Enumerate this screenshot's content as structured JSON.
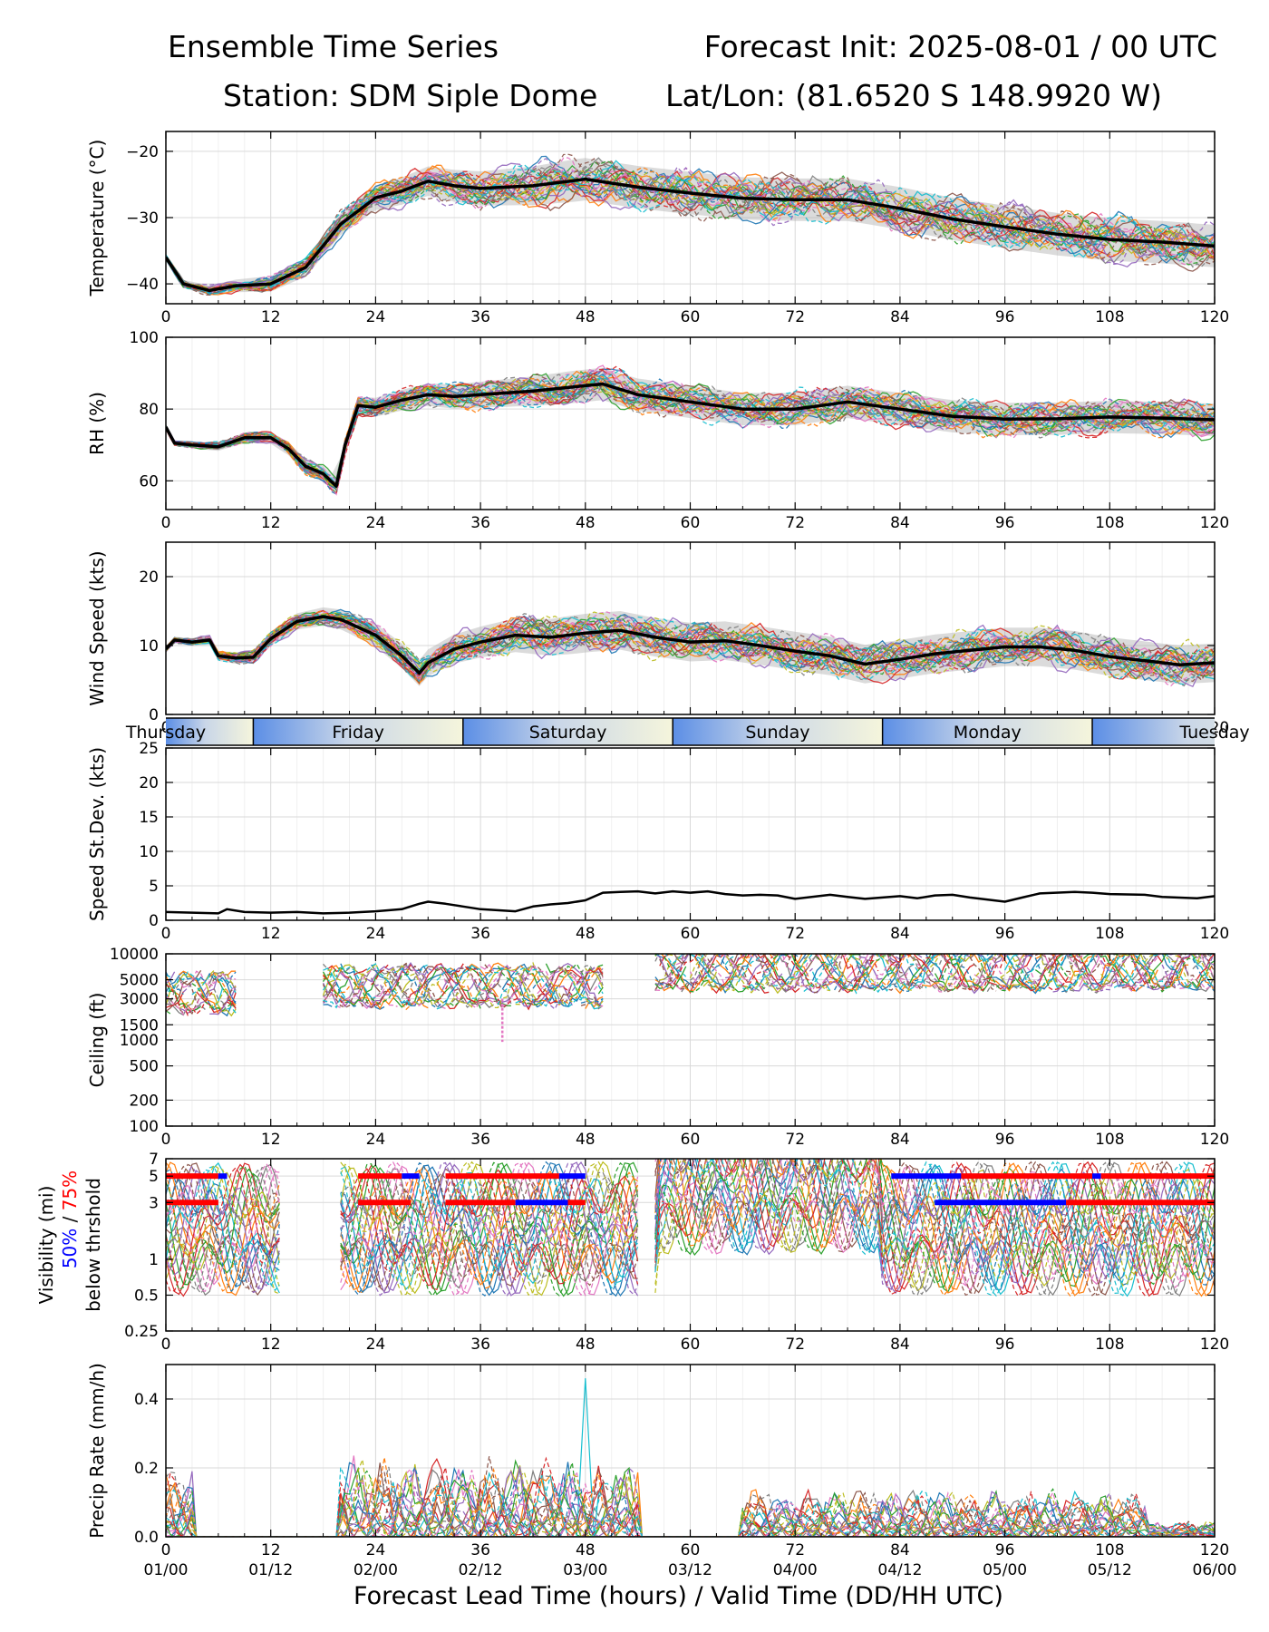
{
  "header": {
    "title_left": "Ensemble Time Series",
    "title_right": "Forecast Init: 2025-08-01 / 00 UTC",
    "station": "Station: SDM  Siple Dome",
    "latlon": "Lat/Lon: (81.6520 S 148.9920 W)"
  },
  "x_axis": {
    "label": "Forecast Lead Time (hours) / Valid Time (DD/HH UTC)",
    "ticks": [
      0,
      12,
      24,
      36,
      48,
      60,
      72,
      84,
      96,
      108,
      120
    ],
    "valid_labels": [
      "01/00",
      "01/12",
      "02/00",
      "02/12",
      "03/00",
      "03/12",
      "04/00",
      "04/12",
      "05/00",
      "05/12",
      "06/00"
    ]
  },
  "day_bar": {
    "days": [
      {
        "label": "Thursday",
        "start": 0,
        "end": 10
      },
      {
        "label": "Friday",
        "start": 10,
        "end": 34
      },
      {
        "label": "Saturday",
        "start": 34,
        "end": 58
      },
      {
        "label": "Sunday",
        "start": 58,
        "end": 82
      },
      {
        "label": "Monday",
        "start": 82,
        "end": 106
      },
      {
        "label": "Tuesday",
        "start": 106,
        "end": 130
      }
    ]
  },
  "ensemble_colors": [
    "#1f77b4",
    "#ff7f0e",
    "#2ca02c",
    "#d62728",
    "#9467bd",
    "#8c564b",
    "#e377c2",
    "#7f7f7f",
    "#bcbd22",
    "#17becf"
  ],
  "chart_data": [
    {
      "id": "temperature",
      "type": "line",
      "ylabel": "Temperature (°C)",
      "ylim": [
        -43,
        -17
      ],
      "yticks": [
        -40,
        -30,
        -20
      ],
      "yscale": "linear",
      "grid": true,
      "mean": {
        "x": [
          0,
          2,
          5,
          8,
          12,
          16,
          20,
          24,
          27,
          30,
          33,
          36,
          42,
          48,
          54,
          60,
          66,
          72,
          78,
          84,
          90,
          96,
          102,
          108,
          114,
          120
        ],
        "y": [
          -36,
          -40,
          -41,
          -40.3,
          -40,
          -37.5,
          -31,
          -27,
          -26,
          -24.5,
          -25.2,
          -25.6,
          -25.2,
          -24.2,
          -25.4,
          -26.3,
          -27.1,
          -27.3,
          -27.3,
          -28.6,
          -30.2,
          -31.4,
          -32.5,
          -33.3,
          -33.7,
          -34.3
        ]
      },
      "spread": 3.2
    },
    {
      "id": "rh",
      "type": "line",
      "ylabel": "RH (%)",
      "ylim": [
        52,
        100
      ],
      "yticks": [
        60,
        80,
        100
      ],
      "yscale": "linear",
      "grid": true,
      "mean": {
        "x": [
          0,
          1,
          3,
          6,
          9,
          12,
          14,
          16,
          18,
          19.5,
          20.5,
          22,
          24,
          27,
          30,
          33,
          36,
          42,
          48,
          50,
          54,
          60,
          66,
          72,
          78,
          84,
          90,
          96,
          102,
          108,
          114,
          120
        ],
        "y": [
          75,
          70.5,
          70,
          69.5,
          72,
          72,
          69,
          64,
          62,
          58.5,
          70,
          81,
          80.5,
          82.5,
          84,
          83.5,
          84,
          85,
          86.5,
          87,
          84,
          82,
          80,
          80,
          82,
          80,
          78,
          77.2,
          77.3,
          77.8,
          77.5,
          77
        ]
      },
      "spread": 4.5
    },
    {
      "id": "windspeed",
      "type": "line",
      "ylabel": "Wind Speed (kts)",
      "ylim": [
        0,
        25
      ],
      "yticks": [
        0,
        10,
        20
      ],
      "yscale": "linear",
      "grid": true,
      "mean": {
        "x": [
          0,
          1,
          3,
          5,
          6,
          8,
          10,
          12,
          15,
          18,
          20,
          24,
          27,
          29,
          30,
          33,
          36,
          40,
          44,
          48,
          52,
          56,
          60,
          64,
          68,
          72,
          76,
          80,
          84,
          88,
          92,
          96,
          100,
          104,
          108,
          112,
          116,
          120
        ],
        "y": [
          9.5,
          10.8,
          10.5,
          10.8,
          8.5,
          8.2,
          8.3,
          11,
          13.5,
          14.2,
          13.8,
          11.5,
          8.5,
          6,
          7.5,
          9.5,
          10.5,
          11.5,
          11.2,
          11.8,
          12.2,
          11.2,
          10.5,
          10.7,
          10,
          9.2,
          8.5,
          7.3,
          8,
          8.8,
          9.3,
          9.8,
          9.8,
          9.3,
          8.4,
          7.8,
          7.2,
          7.5
        ]
      },
      "spread": 2.8
    },
    {
      "id": "speed_stdev",
      "type": "line",
      "ylabel": "Speed St.Dev. (kts)",
      "ylim": [
        0,
        25
      ],
      "yticks": [
        0,
        5,
        10,
        15,
        20,
        25
      ],
      "yscale": "linear",
      "grid": true,
      "mean": {
        "x": [
          0,
          3,
          6,
          7,
          9,
          12,
          15,
          18,
          21,
          24,
          27,
          29,
          30,
          32,
          34,
          36,
          40,
          42,
          44,
          46,
          48,
          50,
          52,
          54,
          56,
          58,
          60,
          62,
          64,
          66,
          68,
          70,
          72,
          76,
          78,
          80,
          84,
          86,
          88,
          90,
          92,
          96,
          98,
          100,
          104,
          106,
          108,
          112,
          114,
          118,
          120
        ],
        "y": [
          1.2,
          1.1,
          1.0,
          1.6,
          1.2,
          1.1,
          1.2,
          1.0,
          1.1,
          1.3,
          1.6,
          2.4,
          2.7,
          2.4,
          2.0,
          1.6,
          1.3,
          2.0,
          2.3,
          2.5,
          2.9,
          4.0,
          4.1,
          4.2,
          3.9,
          4.2,
          4.0,
          4.2,
          3.8,
          3.6,
          3.7,
          3.6,
          3.1,
          3.7,
          3.4,
          3.1,
          3.5,
          3.2,
          3.6,
          3.7,
          3.3,
          2.7,
          3.3,
          3.9,
          4.1,
          4.0,
          3.8,
          3.7,
          3.4,
          3.2,
          3.5
        ]
      }
    },
    {
      "id": "ceiling",
      "type": "line",
      "ylabel": "Ceiling (ft)",
      "ylim": [
        100,
        10000
      ],
      "yticks": [
        100,
        200,
        500,
        1000,
        1500,
        3000,
        5000,
        10000
      ],
      "yscale": "log",
      "grid": true,
      "cloud_windows": [
        [
          0,
          8
        ],
        [
          18,
          50
        ],
        [
          56,
          120
        ]
      ]
    },
    {
      "id": "visibility",
      "type": "line",
      "ylabel": "Visibility (mi)",
      "ylabel_50": "50%",
      "ylabel_sep": " / ",
      "ylabel_75": "75%",
      "ylabel_sub": "below thrshold",
      "ylim": [
        0.25,
        7
      ],
      "yticks": [
        0.25,
        0.5,
        1,
        3,
        5,
        7
      ],
      "yscale": "log",
      "grid": true,
      "threshold_bars": [
        {
          "y": 5,
          "segments": [
            [
              0,
              6,
              "red"
            ],
            [
              6,
              7,
              "blue"
            ],
            [
              22,
              27,
              "red"
            ],
            [
              27,
              29,
              "blue"
            ],
            [
              32,
              45,
              "red"
            ],
            [
              45,
              48,
              "blue"
            ],
            [
              83,
              91,
              "blue"
            ],
            [
              91,
              106,
              "red"
            ],
            [
              106,
              107,
              "blue"
            ],
            [
              107,
              120,
              "red"
            ]
          ]
        },
        {
          "y": 3,
          "segments": [
            [
              0,
              6,
              "red"
            ],
            [
              22,
              28,
              "red"
            ],
            [
              32,
              40,
              "red"
            ],
            [
              40,
              46,
              "blue"
            ],
            [
              46,
              48,
              "red"
            ],
            [
              88,
              103,
              "blue"
            ],
            [
              103,
              120,
              "red"
            ]
          ]
        }
      ]
    },
    {
      "id": "precip",
      "type": "line",
      "ylabel": "Precip Rate (mm/h)",
      "ylim": [
        0,
        0.5
      ],
      "yticks": [
        0.0,
        0.2,
        0.4
      ],
      "yscale": "linear",
      "grid": true,
      "rain_windows": [
        [
          0,
          3,
          0.18
        ],
        [
          20,
          54,
          0.2
        ],
        [
          66,
          112,
          0.12
        ],
        [
          112,
          120,
          0.04
        ]
      ]
    }
  ]
}
